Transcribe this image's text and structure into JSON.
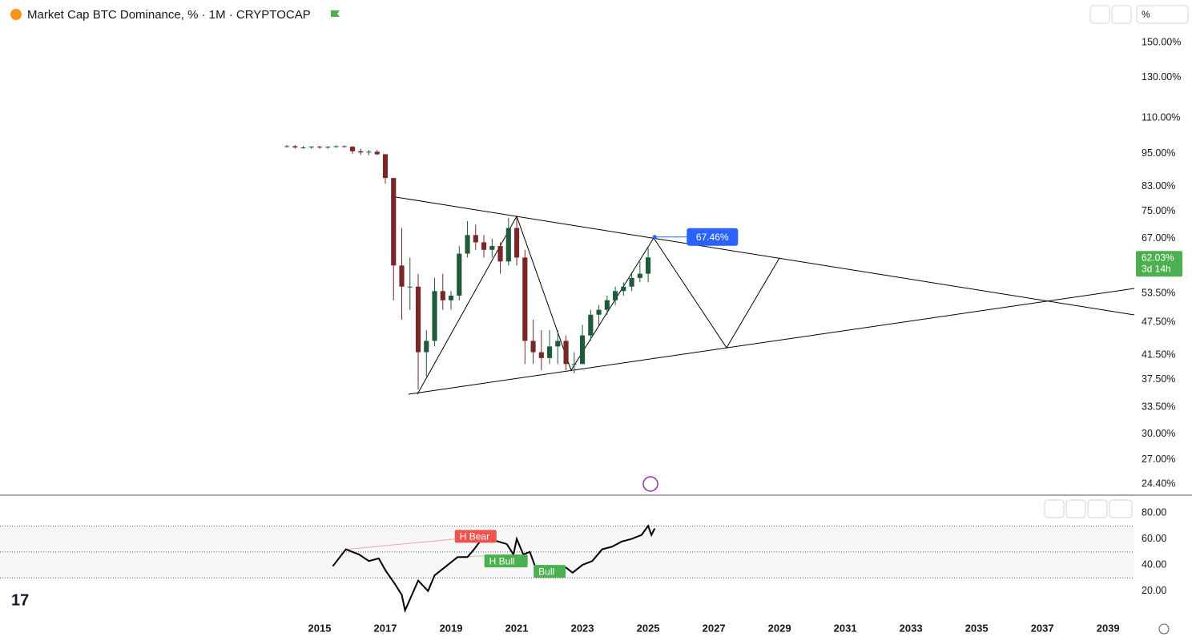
{
  "chart_data": [
    {
      "type": "candlestick",
      "title": "Market Cap BTC Dominance, % · 1M · CRYPTOCAP",
      "unit_box": "%",
      "log_scale": true,
      "ylim": [
        23.4,
        162
      ],
      "xlim": [
        2005.27,
        2039.8
      ],
      "yticks": [
        {
          "value": 150,
          "label": "150.00%"
        },
        {
          "value": 130,
          "label": "130.00%"
        },
        {
          "value": 110,
          "label": "110.00%"
        },
        {
          "value": 95,
          "label": "95.00%"
        },
        {
          "value": 83,
          "label": "83.00%"
        },
        {
          "value": 75,
          "label": "75.00%"
        },
        {
          "value": 67,
          "label": "67.00%"
        },
        {
          "value": 53.5,
          "label": "53.50%"
        },
        {
          "value": 47.5,
          "label": "47.50%"
        },
        {
          "value": 41.5,
          "label": "41.50%"
        },
        {
          "value": 37.5,
          "label": "37.50%"
        },
        {
          "value": 33.5,
          "label": "33.50%"
        },
        {
          "value": 30,
          "label": "30.00%"
        },
        {
          "value": 27,
          "label": "27.00%"
        },
        {
          "value": 24.4,
          "label": "24.40%"
        }
      ],
      "up_color": "#1f5a3a",
      "down_color": "#7a2626",
      "x": [
        2014.0,
        2014.25,
        2014.5,
        2014.75,
        2015.0,
        2015.25,
        2015.5,
        2015.75,
        2016.0,
        2016.25,
        2016.5,
        2016.75,
        2017.0,
        2017.25,
        2017.5,
        2017.75,
        2018.0,
        2018.25,
        2018.5,
        2018.75,
        2019.0,
        2019.25,
        2019.5,
        2019.75,
        2020.0,
        2020.25,
        2020.5,
        2020.75,
        2021.0,
        2021.25,
        2021.5,
        2021.75,
        2022.0,
        2022.25,
        2022.5,
        2022.75,
        2023.0,
        2023.25,
        2023.5,
        2023.75,
        2024.0,
        2024.25,
        2024.5,
        2024.75,
        2025.0
      ],
      "open": [
        98,
        98,
        97.5,
        97.5,
        97.8,
        97.5,
        97.8,
        98,
        97.8,
        96,
        95.5,
        95.8,
        94.8,
        86,
        60,
        55,
        55,
        42,
        44,
        54,
        52,
        53,
        63,
        68,
        66,
        64,
        65,
        61,
        70,
        62,
        44,
        42,
        41,
        43,
        44,
        40,
        40,
        45,
        49,
        50,
        52,
        54,
        55,
        57,
        58
      ],
      "high": [
        98.5,
        98.5,
        98,
        98,
        98.2,
        98,
        98.3,
        98.3,
        98,
        97,
        96.5,
        96.5,
        95,
        86,
        70,
        62,
        58,
        46,
        57,
        58,
        54,
        65,
        72,
        71,
        68,
        67,
        66,
        73,
        73,
        64,
        48,
        46,
        46,
        46,
        45,
        42,
        47,
        50,
        51,
        53,
        55,
        56,
        58,
        61,
        65
      ],
      "low": [
        97.5,
        97,
        97,
        97,
        97,
        97,
        97.4,
        97.5,
        95,
        94.5,
        94.5,
        94.5,
        84,
        52,
        48,
        50,
        36,
        38,
        43,
        50,
        50,
        52,
        62,
        64,
        62,
        62,
        58,
        60,
        60,
        40,
        40,
        39,
        40,
        40,
        39,
        38.5,
        40,
        44,
        47,
        49,
        51,
        53,
        54,
        56,
        56
      ],
      "close": [
        98,
        97.5,
        97.5,
        97.8,
        97.5,
        97.8,
        98,
        97.8,
        96,
        95.5,
        95.8,
        94.8,
        86,
        60,
        55,
        55,
        42,
        44,
        54,
        52,
        53,
        63,
        68,
        66,
        64,
        65,
        61,
        70,
        62,
        44,
        42,
        41,
        43,
        44,
        40,
        40,
        45,
        49,
        50,
        52,
        54,
        55,
        57,
        58,
        62.03
      ],
      "target": {
        "x": 2025.2,
        "value": 67.46,
        "label": "67.46%"
      },
      "last_price": {
        "value": 62.03,
        "label": "62.03%",
        "countdown": "3d 14h"
      }
    },
    {
      "type": "line",
      "color": "#000000",
      "ylim": [
        0,
        93
      ],
      "xlim": [
        2005.27,
        2039.8
      ],
      "yticks": [
        {
          "value": 80,
          "label": "80.00"
        },
        {
          "value": 60,
          "label": "60.00"
        },
        {
          "value": 40,
          "label": "40.00"
        },
        {
          "value": 20,
          "label": "20.00"
        }
      ],
      "hlines": [
        70,
        50,
        30
      ],
      "xticks": [
        2015,
        2017,
        2019,
        2021,
        2023,
        2025,
        2027,
        2029,
        2031,
        2033,
        2035,
        2037,
        2039
      ],
      "x": [
        2015.4,
        2015.8,
        2016.2,
        2016.5,
        2016.8,
        2017.0,
        2017.3,
        2017.5,
        2017.6,
        2018.0,
        2018.3,
        2018.5,
        2018.8,
        2019.2,
        2019.5,
        2019.7,
        2020.0,
        2020.3,
        2020.7,
        2020.9,
        2021.0,
        2021.2,
        2021.4,
        2021.6,
        2021.9,
        2022.2,
        2022.5,
        2022.7,
        2023.0,
        2023.3,
        2023.6,
        2023.9,
        2024.2,
        2024.5,
        2024.8,
        2025.0,
        2025.1,
        2025.2
      ],
      "values": [
        39,
        52,
        48,
        43,
        45,
        36,
        25,
        17,
        5,
        28,
        20,
        32,
        38,
        46,
        46,
        52,
        62,
        59,
        56,
        48,
        60,
        48,
        50,
        36,
        33,
        36,
        38,
        34,
        40,
        43,
        52,
        54,
        58,
        60,
        63,
        70,
        63,
        68
      ],
      "annotations": [
        {
          "label": "H Bear",
          "x": 2019.7,
          "value": 62
        },
        {
          "label": "H Bull",
          "x": 2020.6,
          "value": 43
        },
        {
          "label": "Bull",
          "x": 2022.1,
          "value": 35
        }
      ]
    }
  ]
}
